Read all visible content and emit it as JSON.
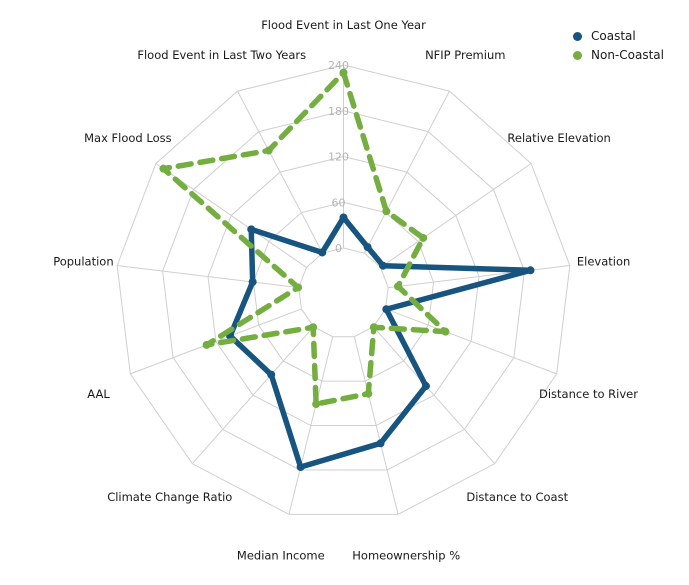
{
  "chart_data": {
    "type": "radar",
    "categories": [
      "Flood Event in Last One Year",
      "NFIP Premium",
      "Relative Elevation",
      "Elevation",
      "Distance to River",
      "Distance to Coast",
      "Homeownership %",
      "Median Income",
      "Climate Change Ratio",
      "AAL",
      "Population",
      "Max Flood Loss",
      "Flood Event in Last Two Years"
    ],
    "series": [
      {
        "name": "Coastal",
        "color": "#175480",
        "line_style": "solid",
        "values": [
          40,
          9,
          4,
          188,
          1,
          104,
          144,
          176,
          84,
          100,
          61,
          88,
          1
        ]
      },
      {
        "name": "Non-Coastal",
        "color": "#75AE40",
        "line_style": "dashed",
        "values": [
          230,
          62,
          68,
          13,
          84,
          1,
          77,
          91,
          1,
          133,
          1,
          228,
          152
        ]
      }
    ],
    "radial_axis": {
      "ticks": [
        0,
        60,
        120,
        180,
        240
      ],
      "min": 0,
      "max": 240,
      "tick_color": "#b5b5b5",
      "grid_color": "#cfcfcf",
      "grid": true,
      "start_angle_deg": 90,
      "direction": "clockwise",
      "inner_hole": true
    },
    "legend_position": "top-right",
    "title": ""
  },
  "legend": {
    "items": [
      {
        "label": "Coastal",
        "color": "#175480"
      },
      {
        "label": "Non-Coastal",
        "color": "#75AE40"
      }
    ]
  }
}
